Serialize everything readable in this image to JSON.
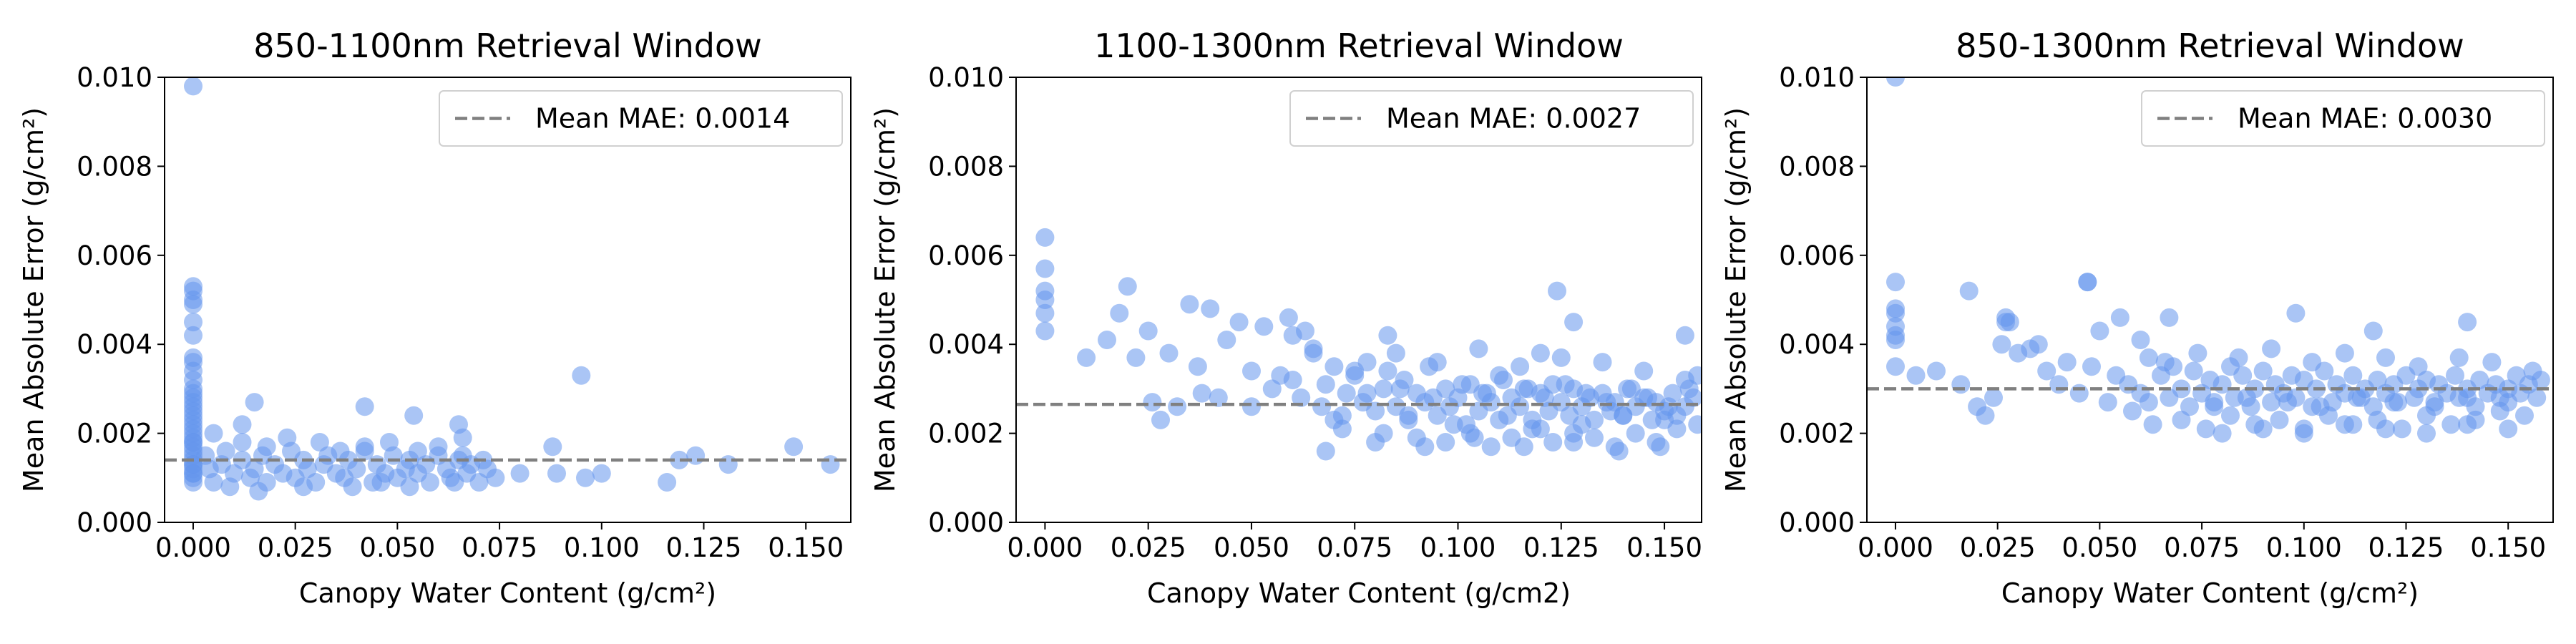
{
  "chart_data": [
    {
      "type": "scatter",
      "title": "850-1100nm Retrieval Window",
      "xlabel": "Canopy Water Content (g/cm²)",
      "ylabel": "Mean Absolute Error (g/cm²)",
      "xlim": [
        -0.007,
        0.161
      ],
      "ylim": [
        0,
        0.01
      ],
      "xticks": [
        "0.000",
        "0.025",
        "0.050",
        "0.075",
        "0.100",
        "0.125",
        "0.150"
      ],
      "yticks": [
        "0.000",
        "0.002",
        "0.004",
        "0.006",
        "0.008",
        "0.010"
      ],
      "grid": false,
      "legend": {
        "position": "top-right",
        "label": "Mean MAE: 0.0014"
      },
      "mean_line": 0.0014,
      "point_color": "#6495ED",
      "line_color": "#808080",
      "series": [
        {
          "x": [
            0.0,
            0.0,
            0.0,
            0.0,
            0.0,
            0.0,
            0.0,
            0.0,
            0.0,
            0.0,
            0.0,
            0.0,
            0.0,
            0.0,
            0.0,
            0.0,
            0.0,
            0.0,
            0.0,
            0.0,
            0.0,
            0.0,
            0.0,
            0.0,
            0.0,
            0.0,
            0.0,
            0.0,
            0.0,
            0.0,
            0.0,
            0.0,
            0.0,
            0.0,
            0.0,
            0.0,
            0.003,
            0.004,
            0.005,
            0.007,
            0.008,
            0.01,
            0.012,
            0.014,
            0.015,
            0.017,
            0.018,
            0.02,
            0.022,
            0.024,
            0.025,
            0.027,
            0.028,
            0.03,
            0.032,
            0.033,
            0.035,
            0.037,
            0.038,
            0.04,
            0.042,
            0.044,
            0.045,
            0.047,
            0.049,
            0.05,
            0.052,
            0.053,
            0.055,
            0.057,
            0.058,
            0.06,
            0.062,
            0.063,
            0.065,
            0.067,
            0.068,
            0.07,
            0.072,
            0.074,
            0.005,
            0.012,
            0.018,
            0.023,
            0.031,
            0.036,
            0.042,
            0.048,
            0.055,
            0.06,
            0.066,
            0.071,
            0.009,
            0.016,
            0.027,
            0.039,
            0.046,
            0.053,
            0.064,
            0.012,
            0.015,
            0.042,
            0.054,
            0.065,
            0.066,
            0.08,
            0.088,
            0.089,
            0.095,
            0.096,
            0.1,
            0.116,
            0.119,
            0.123,
            0.131,
            0.147,
            0.156
          ],
          "y": [
            0.0098,
            0.0053,
            0.0052,
            0.005,
            0.0049,
            0.0045,
            0.0042,
            0.0037,
            0.0036,
            0.0034,
            0.0032,
            0.003,
            0.0029,
            0.0028,
            0.0027,
            0.0026,
            0.0025,
            0.0024,
            0.0023,
            0.0022,
            0.0021,
            0.002,
            0.0019,
            0.0018,
            0.0017,
            0.0016,
            0.0015,
            0.0014,
            0.0013,
            0.0012,
            0.0011,
            0.001,
            0.0009,
            0.0018,
            0.0013,
            0.0011,
            0.0015,
            0.0012,
            0.0009,
            0.0013,
            0.0016,
            0.0011,
            0.0014,
            0.001,
            0.0012,
            0.0015,
            0.0009,
            0.0013,
            0.0011,
            0.0016,
            0.001,
            0.0014,
            0.0012,
            0.0009,
            0.0013,
            0.0015,
            0.0011,
            0.001,
            0.0014,
            0.0012,
            0.0016,
            0.0009,
            0.0013,
            0.0011,
            0.0015,
            0.001,
            0.0012,
            0.0014,
            0.0011,
            0.0013,
            0.0009,
            0.0015,
            0.0012,
            0.001,
            0.0014,
            0.0011,
            0.0013,
            0.0009,
            0.0012,
            0.001,
            0.002,
            0.0018,
            0.0017,
            0.0019,
            0.0018,
            0.0016,
            0.0017,
            0.0018,
            0.0016,
            0.0017,
            0.0015,
            0.0014,
            0.0008,
            0.0007,
            0.0008,
            0.0008,
            0.0009,
            0.0008,
            0.0009,
            0.0022,
            0.0027,
            0.0026,
            0.0024,
            0.0022,
            0.0019,
            0.0011,
            0.0017,
            0.0011,
            0.0033,
            0.001,
            0.0011,
            0.0009,
            0.0014,
            0.0015,
            0.0013,
            0.0017,
            0.0013
          ]
        }
      ]
    },
    {
      "type": "scatter",
      "title": "1100-1300nm Retrieval Window",
      "xlabel": "Canopy Water Content (g/cm2)",
      "ylabel": "Mean Absolute Error (g/cm²)",
      "xlim": [
        -0.007,
        0.159
      ],
      "ylim": [
        0,
        0.01
      ],
      "xticks": [
        "0.000",
        "0.025",
        "0.050",
        "0.075",
        "0.100",
        "0.125",
        "0.150"
      ],
      "yticks": [
        "0.000",
        "0.002",
        "0.004",
        "0.006",
        "0.008",
        "0.010"
      ],
      "grid": false,
      "legend": {
        "position": "top-right",
        "label": "Mean MAE: 0.0027"
      },
      "mean_line": 0.00265,
      "point_color": "#6495ED",
      "line_color": "#808080",
      "series": [
        {
          "x": [
            0.0,
            0.0,
            0.0,
            0.0,
            0.0,
            0.0,
            0.01,
            0.015,
            0.018,
            0.02,
            0.022,
            0.025,
            0.026,
            0.028,
            0.03,
            0.032,
            0.035,
            0.037,
            0.038,
            0.04,
            0.042,
            0.044,
            0.047,
            0.05,
            0.053,
            0.055,
            0.057,
            0.059,
            0.06,
            0.062,
            0.063,
            0.065,
            0.067,
            0.068,
            0.07,
            0.072,
            0.073,
            0.075,
            0.077,
            0.078,
            0.08,
            0.082,
            0.083,
            0.085,
            0.087,
            0.088,
            0.09,
            0.092,
            0.093,
            0.095,
            0.097,
            0.098,
            0.1,
            0.102,
            0.103,
            0.105,
            0.107,
            0.108,
            0.11,
            0.112,
            0.113,
            0.115,
            0.117,
            0.118,
            0.12,
            0.122,
            0.123,
            0.125,
            0.127,
            0.128,
            0.13,
            0.132,
            0.133,
            0.135,
            0.137,
            0.138,
            0.14,
            0.142,
            0.143,
            0.145,
            0.147,
            0.148,
            0.15,
            0.152,
            0.153,
            0.155,
            0.157,
            0.158,
            0.072,
            0.082,
            0.09,
            0.097,
            0.103,
            0.108,
            0.113,
            0.118,
            0.123,
            0.128,
            0.133,
            0.138,
            0.143,
            0.148,
            0.153,
            0.078,
            0.086,
            0.094,
            0.101,
            0.106,
            0.111,
            0.116,
            0.121,
            0.126,
            0.131,
            0.136,
            0.141,
            0.146,
            0.151,
            0.156,
            0.158,
            0.075,
            0.085,
            0.095,
            0.105,
            0.115,
            0.125,
            0.135,
            0.145,
            0.155,
            0.07,
            0.088,
            0.099,
            0.11,
            0.12,
            0.13,
            0.14,
            0.15,
            0.068,
            0.08,
            0.092,
            0.104,
            0.116,
            0.128,
            0.139,
            0.149,
            0.124,
            0.128,
            0.05,
            0.06,
            0.065,
            0.083,
            0.12,
            0.155
          ],
          "y": [
            0.0064,
            0.0057,
            0.0052,
            0.005,
            0.0047,
            0.0043,
            0.0037,
            0.0041,
            0.0047,
            0.0053,
            0.0037,
            0.0043,
            0.0027,
            0.0023,
            0.0038,
            0.0026,
            0.0049,
            0.0035,
            0.0029,
            0.0048,
            0.0028,
            0.0041,
            0.0045,
            0.0026,
            0.0044,
            0.003,
            0.0033,
            0.0046,
            0.0032,
            0.0028,
            0.0043,
            0.0038,
            0.0026,
            0.0031,
            0.0035,
            0.0024,
            0.0029,
            0.0033,
            0.0027,
            0.0036,
            0.0025,
            0.003,
            0.0034,
            0.0026,
            0.0032,
            0.0023,
            0.0029,
            0.0027,
            0.0035,
            0.0024,
            0.003,
            0.0026,
            0.0028,
            0.0022,
            0.0031,
            0.0025,
            0.0029,
            0.0027,
            0.0033,
            0.0024,
            0.0028,
            0.0026,
            0.003,
            0.0023,
            0.0029,
            0.0025,
            0.0031,
            0.0027,
            0.0024,
            0.003,
            0.0026,
            0.0028,
            0.0023,
            0.0029,
            0.0025,
            0.0027,
            0.0024,
            0.003,
            0.0026,
            0.0028,
            0.0023,
            0.0027,
            0.0025,
            0.0029,
            0.0024,
            0.0026,
            0.0028,
            0.0022,
            0.0021,
            0.002,
            0.0019,
            0.0018,
            0.002,
            0.0017,
            0.0019,
            0.0021,
            0.0018,
            0.002,
            0.0019,
            0.0017,
            0.002,
            0.0018,
            0.0021,
            0.0029,
            0.003,
            0.0028,
            0.0031,
            0.0029,
            0.0032,
            0.003,
            0.0028,
            0.0031,
            0.0029,
            0.0027,
            0.003,
            0.0028,
            0.0026,
            0.003,
            0.0033,
            0.0034,
            0.0038,
            0.0036,
            0.0039,
            0.0035,
            0.0037,
            0.0036,
            0.0034,
            0.0032,
            0.0023,
            0.0024,
            0.0022,
            0.0023,
            0.0021,
            0.0022,
            0.0024,
            0.0023,
            0.0016,
            0.0018,
            0.0017,
            0.0019,
            0.0017,
            0.0018,
            0.0016,
            0.0017,
            0.0052,
            0.0045,
            0.0034,
            0.0042,
            0.0039,
            0.0042,
            0.0038,
            0.0042
          ]
        }
      ]
    },
    {
      "type": "scatter",
      "title": "850-1300nm Retrieval Window",
      "xlabel": "Canopy Water Content (g/cm²)",
      "ylabel": "Mean Absolute Error (g/cm²)",
      "xlim": [
        -0.007,
        0.161
      ],
      "ylim": [
        0,
        0.01
      ],
      "xticks": [
        "0.000",
        "0.025",
        "0.050",
        "0.075",
        "0.100",
        "0.125",
        "0.150"
      ],
      "yticks": [
        "0.000",
        "0.002",
        "0.004",
        "0.006",
        "0.008",
        "0.010"
      ],
      "grid": false,
      "legend": {
        "position": "top-right",
        "label": "Mean MAE: 0.0030"
      },
      "mean_line": 0.003,
      "point_color": "#6495ED",
      "line_color": "#808080",
      "series": [
        {
          "x": [
            0.0,
            0.0,
            0.0,
            0.0,
            0.0,
            0.0,
            0.0,
            0.0,
            0.005,
            0.01,
            0.016,
            0.018,
            0.02,
            0.022,
            0.024,
            0.026,
            0.027,
            0.028,
            0.03,
            0.033,
            0.035,
            0.037,
            0.04,
            0.042,
            0.045,
            0.047,
            0.048,
            0.05,
            0.052,
            0.054,
            0.055,
            0.057,
            0.058,
            0.06,
            0.062,
            0.063,
            0.065,
            0.067,
            0.068,
            0.07,
            0.072,
            0.073,
            0.075,
            0.077,
            0.078,
            0.08,
            0.082,
            0.083,
            0.085,
            0.087,
            0.088,
            0.09,
            0.092,
            0.093,
            0.095,
            0.097,
            0.098,
            0.1,
            0.102,
            0.103,
            0.105,
            0.107,
            0.108,
            0.11,
            0.112,
            0.113,
            0.115,
            0.117,
            0.118,
            0.12,
            0.122,
            0.123,
            0.125,
            0.127,
            0.128,
            0.13,
            0.132,
            0.133,
            0.135,
            0.137,
            0.138,
            0.14,
            0.142,
            0.143,
            0.145,
            0.147,
            0.148,
            0.15,
            0.152,
            0.153,
            0.155,
            0.157,
            0.158,
            0.07,
            0.076,
            0.082,
            0.088,
            0.094,
            0.1,
            0.106,
            0.112,
            0.118,
            0.124,
            0.13,
            0.136,
            0.142,
            0.148,
            0.154,
            0.066,
            0.074,
            0.084,
            0.092,
            0.102,
            0.11,
            0.12,
            0.128,
            0.138,
            0.146,
            0.156,
            0.062,
            0.078,
            0.086,
            0.096,
            0.104,
            0.114,
            0.122,
            0.132,
            0.14,
            0.15,
            0.08,
            0.09,
            0.1,
            0.11,
            0.12,
            0.13,
            0.14,
            0.15,
            0.027,
            0.047,
            0.06,
            0.067,
            0.098,
            0.117,
            0.14
          ],
          "y": [
            0.01,
            0.0054,
            0.0048,
            0.0044,
            0.0042,
            0.0047,
            0.0035,
            0.0041,
            0.0033,
            0.0034,
            0.0031,
            0.0052,
            0.0026,
            0.0024,
            0.0028,
            0.004,
            0.0046,
            0.0045,
            0.0038,
            0.0039,
            0.004,
            0.0034,
            0.0031,
            0.0036,
            0.0029,
            0.0054,
            0.0035,
            0.0043,
            0.0027,
            0.0033,
            0.0046,
            0.0031,
            0.0025,
            0.0029,
            0.0037,
            0.0022,
            0.0033,
            0.0028,
            0.0035,
            0.003,
            0.0026,
            0.0034,
            0.0029,
            0.0032,
            0.0027,
            0.0031,
            0.0035,
            0.0028,
            0.0033,
            0.0026,
            0.003,
            0.0034,
            0.0027,
            0.0031,
            0.0029,
            0.0033,
            0.0028,
            0.0032,
            0.0026,
            0.003,
            0.0034,
            0.0027,
            0.0031,
            0.0029,
            0.0033,
            0.0028,
            0.003,
            0.0026,
            0.0032,
            0.0029,
            0.0031,
            0.0027,
            0.0033,
            0.0028,
            0.003,
            0.0032,
            0.0027,
            0.0031,
            0.0029,
            0.0033,
            0.0028,
            0.003,
            0.0026,
            0.0032,
            0.0029,
            0.0031,
            0.0028,
            0.003,
            0.0033,
            0.0029,
            0.0031,
            0.0028,
            0.0032,
            0.0023,
            0.0021,
            0.0024,
            0.0022,
            0.0023,
            0.0021,
            0.0024,
            0.0022,
            0.0023,
            0.0021,
            0.0024,
            0.0022,
            0.0023,
            0.0025,
            0.0024,
            0.0036,
            0.0038,
            0.0037,
            0.0039,
            0.0036,
            0.0038,
            0.0037,
            0.0035,
            0.0037,
            0.0036,
            0.0034,
            0.0027,
            0.0026,
            0.0028,
            0.0027,
            0.0026,
            0.0028,
            0.0027,
            0.0026,
            0.0028,
            0.0027,
            0.002,
            0.0021,
            0.002,
            0.0022,
            0.0021,
            0.002,
            0.0022,
            0.0021,
            0.0045,
            0.0054,
            0.0041,
            0.0046,
            0.0047,
            0.0043,
            0.0045
          ]
        }
      ]
    }
  ]
}
